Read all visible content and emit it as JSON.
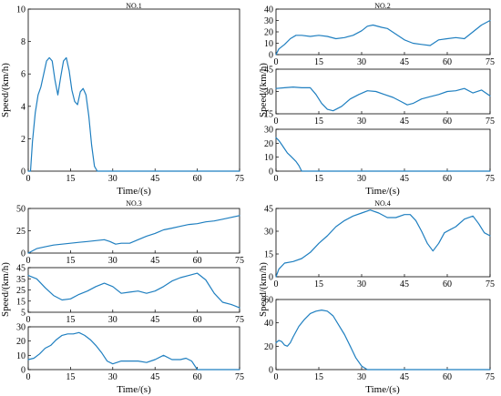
{
  "chart_data": [
    {
      "type": "line",
      "title": "NO.1",
      "xlabel": "Time/(s)",
      "ylabel": "Speed/(km/h)",
      "xlim": [
        0,
        75
      ],
      "ylim": [
        0,
        10
      ],
      "xticks": [
        "0",
        "15",
        "30",
        "45",
        "60",
        "75"
      ],
      "yticks": [
        "0",
        "2",
        "4",
        "6",
        "8",
        "10"
      ],
      "series": [
        {
          "x": [
            0,
            0.8,
            1.5,
            2.5,
            3.5,
            4.5,
            5.5,
            6.5,
            7.5,
            8.5,
            9.5,
            10.5,
            11.5,
            12.5,
            13.5,
            14.5,
            15.5,
            16.5,
            17.5,
            18.5,
            19.5,
            20.5,
            21.5,
            22.5,
            23.5,
            24.5,
            25,
            26,
            30,
            45,
            60,
            75
          ],
          "y": [
            0,
            0,
            1.8,
            3.6,
            4.7,
            5.2,
            6.0,
            6.8,
            7.0,
            6.8,
            5.6,
            4.7,
            5.8,
            6.8,
            7.0,
            6.2,
            5.0,
            4.3,
            4.1,
            4.9,
            5.1,
            4.7,
            3.4,
            1.6,
            0.3,
            0,
            0,
            0,
            0,
            0,
            0,
            0
          ]
        }
      ]
    },
    {
      "type": "line",
      "title": "NO.2",
      "xlabel": "Time/(s)",
      "ylabel": "Speed/(km/h)",
      "xlim": [
        0,
        75
      ],
      "panels": [
        {
          "ylim": [
            0,
            40
          ],
          "yticks": [
            "0",
            "10",
            "20",
            "30",
            "40"
          ],
          "x": [
            0,
            1,
            3,
            5,
            7,
            9,
            12,
            15,
            18,
            21,
            24,
            27,
            30,
            32,
            34,
            37,
            39,
            42,
            45,
            48,
            51,
            54,
            57,
            60,
            63,
            66,
            69,
            72,
            75
          ],
          "y": [
            0,
            5,
            9,
            14,
            17,
            17,
            16,
            17,
            16,
            14,
            15,
            17,
            21,
            25,
            26,
            24,
            23,
            18,
            13,
            10,
            9,
            8,
            13,
            14,
            15,
            14,
            20,
            26,
            30
          ]
        },
        {
          "ylim": [
            15,
            45
          ],
          "yticks": [
            "15",
            "30",
            "45"
          ],
          "x": [
            0,
            3,
            6,
            9,
            12,
            14,
            16,
            18,
            20,
            23,
            26,
            29,
            32,
            35,
            38,
            41,
            44,
            46,
            48,
            51,
            54,
            57,
            60,
            63,
            66,
            69,
            72,
            75
          ],
          "y": [
            32,
            32.5,
            33,
            32.5,
            32.5,
            28,
            22,
            18,
            17,
            20,
            25,
            28,
            30.5,
            30,
            28,
            26,
            23,
            21,
            22,
            25,
            26.5,
            28,
            30,
            30.5,
            32,
            29,
            31,
            27
          ]
        },
        {
          "ylim": [
            0,
            30
          ],
          "yticks": [
            "0",
            "10",
            "20",
            "30"
          ],
          "x": [
            0,
            1,
            2,
            3,
            4,
            5,
            6,
            7,
            8,
            9,
            10,
            15,
            30,
            45,
            60,
            75
          ],
          "y": [
            24,
            22,
            19,
            16,
            13,
            11,
            9,
            7,
            4,
            0,
            0,
            0,
            0,
            0,
            0,
            0
          ]
        }
      ]
    },
    {
      "type": "line",
      "title": "NO.3",
      "xlabel": "Time/(s)",
      "ylabel": "Speed/(km/h)",
      "xlim": [
        0,
        75
      ],
      "panels": [
        {
          "ylim": [
            0,
            50
          ],
          "yticks": [
            "0",
            "25",
            "50"
          ],
          "x": [
            0,
            3,
            6,
            9,
            12,
            15,
            18,
            21,
            24,
            27,
            29,
            31,
            33,
            36,
            39,
            42,
            45,
            48,
            51,
            54,
            57,
            60,
            63,
            66,
            69,
            72,
            75
          ],
          "y": [
            0,
            5,
            7,
            9,
            10,
            11,
            12,
            13,
            14,
            15,
            13,
            10,
            11,
            11,
            15,
            19,
            22,
            26,
            28,
            30,
            32,
            33,
            35,
            36,
            38,
            40,
            42
          ]
        },
        {
          "ylim": [
            5,
            45
          ],
          "yticks": [
            "5",
            "15",
            "25",
            "35",
            "45"
          ],
          "x": [
            0,
            3,
            6,
            9,
            12,
            15,
            18,
            21,
            24,
            27,
            30,
            33,
            36,
            39,
            42,
            45,
            48,
            51,
            54,
            57,
            60,
            63,
            66,
            69,
            72,
            75
          ],
          "y": [
            38,
            35,
            27,
            20,
            16,
            17,
            21,
            24,
            28,
            31,
            28,
            22,
            23,
            24,
            22,
            24,
            28,
            33,
            36,
            38,
            40,
            34,
            22,
            14,
            12,
            9
          ]
        },
        {
          "ylim": [
            0,
            30
          ],
          "yticks": [
            "0",
            "10",
            "20",
            "30"
          ],
          "x": [
            0,
            2,
            4,
            6,
            8,
            10,
            12,
            14,
            16,
            18,
            20,
            22,
            24,
            26,
            28,
            30,
            33,
            36,
            39,
            42,
            45,
            48,
            51,
            54,
            56,
            58,
            60,
            62,
            75
          ],
          "y": [
            7,
            8,
            11,
            15,
            17,
            21,
            24,
            25,
            25,
            26,
            24,
            21,
            17,
            12,
            6,
            4,
            6,
            6,
            6,
            5,
            7,
            10,
            7,
            7,
            8,
            6,
            0,
            0,
            0
          ]
        }
      ]
    },
    {
      "type": "line",
      "title": "NO.4",
      "xlabel": "Time/(s)",
      "ylabel": "Speed/(km/h)",
      "xlim": [
        0,
        75
      ],
      "panels": [
        {
          "ylim": [
            0,
            45
          ],
          "yticks": [
            "0",
            "15",
            "30",
            "45"
          ],
          "x": [
            0,
            1,
            3,
            6,
            9,
            12,
            15,
            18,
            21,
            24,
            27,
            30,
            33,
            36,
            39,
            42,
            45,
            47,
            49,
            51,
            53,
            55,
            57,
            59,
            61,
            63,
            66,
            69,
            71,
            73,
            75
          ],
          "y": [
            0,
            5,
            9,
            10,
            12,
            16,
            22,
            27,
            33,
            37,
            40,
            42,
            44,
            42,
            39,
            39,
            41,
            41,
            37,
            30,
            22,
            17,
            22,
            29,
            31,
            33,
            38,
            40,
            35,
            29,
            27
          ]
        },
        {
          "ylim": [
            0,
            60
          ],
          "yticks": [
            "0",
            "20",
            "40",
            "60"
          ],
          "x": [
            0,
            1,
            2,
            3,
            4,
            5,
            6,
            8,
            10,
            12,
            14,
            16,
            18,
            20,
            22,
            24,
            26,
            28,
            30,
            32,
            45,
            60,
            75
          ],
          "y": [
            23,
            25,
            24,
            21,
            20,
            23,
            28,
            37,
            43,
            48,
            50,
            51,
            50,
            46,
            38,
            30,
            20,
            10,
            3,
            0,
            0,
            0,
            0
          ]
        }
      ]
    }
  ]
}
